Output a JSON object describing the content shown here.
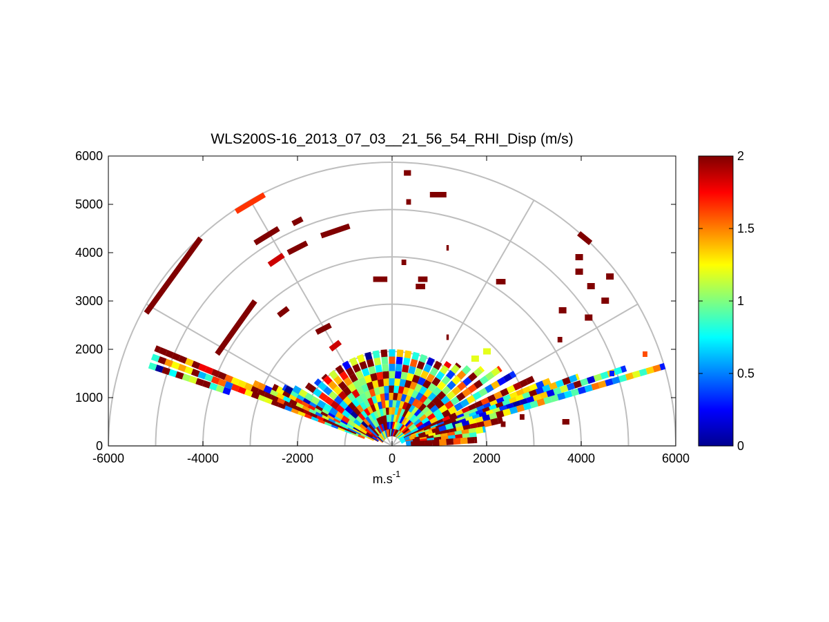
{
  "chart_data": {
    "type": "heatmap",
    "subtype": "polar-rhi-scan",
    "title": "WLS200S-16_2013_07_03__21_56_54_RHI_Disp (m/s)",
    "xlabel": "m.s",
    "xlabel_sup": "-1",
    "ylabel": "",
    "xlim": [
      -6000,
      6000
    ],
    "ylim": [
      0,
      6000
    ],
    "xticks": [
      "-6000",
      "-4000",
      "-2000",
      "0",
      "2000",
      "4000",
      "6000"
    ],
    "yticks": [
      "0",
      "1000",
      "2000",
      "3000",
      "4000",
      "5000",
      "6000"
    ],
    "polar_grid": {
      "range_rings": [
        1000,
        2000,
        3000,
        4000,
        5000,
        6000
      ],
      "spokes_deg": [
        0,
        30,
        60,
        90,
        120,
        150,
        180
      ]
    },
    "grid": true,
    "colormap": "jet",
    "colorbar": {
      "min": 0,
      "max": 2,
      "ticks": [
        "0",
        "0.5",
        "1",
        "1.5",
        "2"
      ]
    },
    "rays": [
      {
        "elev_deg": 162,
        "r_min": 3600,
        "r_max": 5400,
        "value": 0.72
      },
      {
        "elev_deg": 160,
        "r_min": 600,
        "r_max": 5400,
        "value": 1.1
      },
      {
        "elev_deg": 158,
        "r_min": 800,
        "r_max": 5400,
        "value": 1.9
      },
      {
        "elev_deg": 156,
        "r_min": 400,
        "r_max": 3200,
        "value": 0.85
      },
      {
        "elev_deg": 154,
        "r_min": 600,
        "r_max": 2800,
        "value": 1.4
      },
      {
        "elev_deg": 152,
        "r_min": 300,
        "r_max": 2600,
        "value": 0.6
      },
      {
        "elev_deg": 150,
        "r_min": 300,
        "r_max": 2400,
        "value": 1.0
      },
      {
        "elev_deg": 145,
        "r_min": 200,
        "r_max": 2200,
        "value": 1.3
      },
      {
        "elev_deg": 140,
        "r_min": 200,
        "r_max": 2100,
        "value": 0.7
      },
      {
        "elev_deg": 135,
        "r_min": 200,
        "r_max": 2050,
        "value": 1.6
      },
      {
        "elev_deg": 130,
        "r_min": 200,
        "r_max": 2000,
        "value": 0.9
      },
      {
        "elev_deg": 125,
        "r_min": 200,
        "r_max": 2000,
        "value": 1.2
      },
      {
        "elev_deg": 120,
        "r_min": 200,
        "r_max": 2000,
        "value": 0.8
      },
      {
        "elev_deg": 115,
        "r_min": 200,
        "r_max": 2000,
        "value": 1.5
      },
      {
        "elev_deg": 110,
        "r_min": 200,
        "r_max": 2000,
        "value": 1.0
      },
      {
        "elev_deg": 105,
        "r_min": 200,
        "r_max": 2000,
        "value": 0.65
      },
      {
        "elev_deg": 100,
        "r_min": 200,
        "r_max": 2000,
        "value": 1.3
      },
      {
        "elev_deg": 95,
        "r_min": 200,
        "r_max": 2000,
        "value": 0.9
      },
      {
        "elev_deg": 90,
        "r_min": 200,
        "r_max": 2000,
        "value": 1.1
      },
      {
        "elev_deg": 85,
        "r_min": 200,
        "r_max": 2000,
        "value": 0.75
      },
      {
        "elev_deg": 80,
        "r_min": 200,
        "r_max": 2000,
        "value": 1.25
      },
      {
        "elev_deg": 75,
        "r_min": 200,
        "r_max": 2000,
        "value": 0.95
      },
      {
        "elev_deg": 70,
        "r_min": 200,
        "r_max": 2000,
        "value": 1.4
      },
      {
        "elev_deg": 65,
        "r_min": 200,
        "r_max": 2000,
        "value": 0.7
      },
      {
        "elev_deg": 60,
        "r_min": 200,
        "r_max": 2000,
        "value": 1.0
      },
      {
        "elev_deg": 55,
        "r_min": 200,
        "r_max": 2100,
        "value": 1.2
      },
      {
        "elev_deg": 50,
        "r_min": 200,
        "r_max": 2200,
        "value": 0.8
      },
      {
        "elev_deg": 45,
        "r_min": 200,
        "r_max": 2300,
        "value": 1.1
      },
      {
        "elev_deg": 40,
        "r_min": 200,
        "r_max": 2500,
        "value": 0.9
      },
      {
        "elev_deg": 35,
        "r_min": 200,
        "r_max": 2800,
        "value": 1.3
      },
      {
        "elev_deg": 30,
        "r_min": 200,
        "r_max": 3000,
        "value": 0.7
      },
      {
        "elev_deg": 25,
        "r_min": 300,
        "r_max": 3300,
        "value": 1.9
      },
      {
        "elev_deg": 22,
        "r_min": 300,
        "r_max": 3600,
        "value": 0.8
      },
      {
        "elev_deg": 20,
        "r_min": 400,
        "r_max": 4200,
        "value": 1.0
      },
      {
        "elev_deg": 18,
        "r_min": 600,
        "r_max": 5200,
        "value": 0.72
      },
      {
        "elev_deg": 16,
        "r_min": 1400,
        "r_max": 6000,
        "value": 0.85
      },
      {
        "elev_deg": 13,
        "r_min": 500,
        "r_max": 2400,
        "value": 1.9
      },
      {
        "elev_deg": 10,
        "r_min": 300,
        "r_max": 2000,
        "value": 0.9
      },
      {
        "elev_deg": 7,
        "r_min": 300,
        "r_max": 1800,
        "value": 1.2
      },
      {
        "elev_deg": 4,
        "r_min": 400,
        "r_max": 1800,
        "value": 1.95
      }
    ],
    "scattered_cells": [
      {
        "x": -5200,
        "y": 2750,
        "x2": -4050,
        "y2": 4300,
        "value": 2.0
      },
      {
        "x": -3300,
        "y": 4850,
        "x2": -2700,
        "y2": 5200,
        "value": 1.65
      },
      {
        "x": -2900,
        "y": 4200,
        "x2": -2400,
        "y2": 4500,
        "value": 2.0
      },
      {
        "x": -2100,
        "y": 4600,
        "x2": -1900,
        "y2": 4700,
        "value": 2.0
      },
      {
        "x": -1500,
        "y": 4350,
        "x2": -900,
        "y2": 4550,
        "value": 2.0
      },
      {
        "x": -2600,
        "y": 3750,
        "x2": -2300,
        "y2": 3950,
        "value": 1.85
      },
      {
        "x": -2200,
        "y": 4000,
        "x2": -1800,
        "y2": 4200,
        "value": 2.0
      },
      {
        "x": -3700,
        "y": 1900,
        "x2": -2900,
        "y2": 3000,
        "value": 2.0
      },
      {
        "x": -2400,
        "y": 2700,
        "x2": -2200,
        "y2": 2850,
        "value": 2.0
      },
      {
        "x": -1600,
        "y": 2350,
        "x2": -1300,
        "y2": 2500,
        "value": 2.0
      },
      {
        "x": -1300,
        "y": 2000,
        "x2": -1100,
        "y2": 2150,
        "value": 1.85
      },
      {
        "x": -400,
        "y": 3450,
        "x2": -100,
        "y2": 3450,
        "value": 2.0
      },
      {
        "x": 250,
        "y": 5650,
        "x2": 400,
        "y2": 5650,
        "value": 2.0
      },
      {
        "x": 300,
        "y": 5050,
        "x2": 400,
        "y2": 5050,
        "value": 2.0
      },
      {
        "x": 800,
        "y": 5200,
        "x2": 1150,
        "y2": 5200,
        "value": 2.0
      },
      {
        "x": 1150,
        "y": 4100,
        "x2": 1200,
        "y2": 4100,
        "value": 2.0
      },
      {
        "x": 200,
        "y": 3800,
        "x2": 300,
        "y2": 3800,
        "value": 2.0
      },
      {
        "x": 500,
        "y": 3300,
        "x2": 700,
        "y2": 3300,
        "value": 2.0
      },
      {
        "x": 550,
        "y": 3450,
        "x2": 750,
        "y2": 3450,
        "value": 2.0
      },
      {
        "x": 1150,
        "y": 2250,
        "x2": 1200,
        "y2": 2250,
        "value": 2.0
      },
      {
        "x": 2200,
        "y": 3400,
        "x2": 2400,
        "y2": 3400,
        "value": 2.0
      },
      {
        "x": 3600,
        "y": 2800,
        "x2": 3600,
        "y2": 2800,
        "value": 2.0
      },
      {
        "x": 3500,
        "y": 2200,
        "x2": 3600,
        "y2": 2200,
        "value": 2.0
      },
      {
        "x": 3950,
        "y": 4400,
        "x2": 4200,
        "y2": 4200,
        "value": 2.0
      },
      {
        "x": 3950,
        "y": 3900,
        "x2": 3950,
        "y2": 3900,
        "value": 2.0
      },
      {
        "x": 3950,
        "y": 3600,
        "x2": 3950,
        "y2": 3600,
        "value": 2.0
      },
      {
        "x": 4200,
        "y": 3300,
        "x2": 4200,
        "y2": 3300,
        "value": 2.0
      },
      {
        "x": 4500,
        "y": 3000,
        "x2": 4500,
        "y2": 3000,
        "value": 2.0
      },
      {
        "x": 4150,
        "y": 2650,
        "x2": 4150,
        "y2": 2650,
        "value": 2.0
      },
      {
        "x": 4600,
        "y": 3500,
        "x2": 4600,
        "y2": 3500,
        "value": 2.0
      },
      {
        "x": 2000,
        "y": 1950,
        "x2": 2000,
        "y2": 1950,
        "value": 1.2
      },
      {
        "x": 1750,
        "y": 1800,
        "x2": 1750,
        "y2": 1800,
        "value": 1.2
      },
      {
        "x": 3600,
        "y": 500,
        "x2": 3750,
        "y2": 500,
        "value": 2.0
      },
      {
        "x": 2700,
        "y": 600,
        "x2": 2800,
        "y2": 600,
        "value": 2.0
      },
      {
        "x": 2300,
        "y": 450,
        "x2": 2400,
        "y2": 450,
        "value": 2.0
      },
      {
        "x": 4600,
        "y": 1500,
        "x2": 4700,
        "y2": 1500,
        "value": 0.3
      },
      {
        "x": 5300,
        "y": 1900,
        "x2": 5400,
        "y2": 1900,
        "value": 1.6
      }
    ]
  }
}
